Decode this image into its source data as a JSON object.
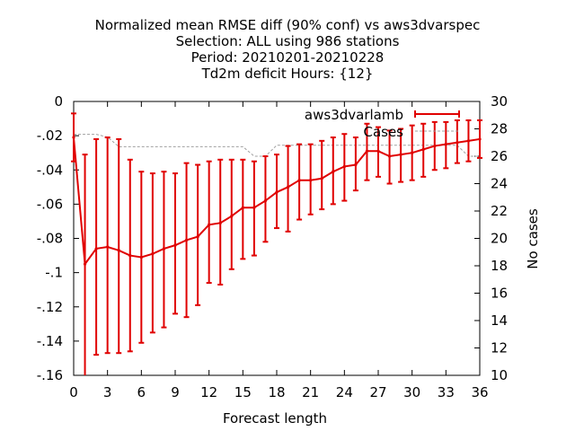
{
  "chart_data": {
    "type": "line",
    "title_lines": [
      "Normalized mean RMSE diff (90% conf) vs aws3dvarspec",
      "Selection: ALL using   986 stations",
      "Period: 20210201-20210228",
      "Td2m deficit   Hours: {12}"
    ],
    "xlabel": "Forecast length",
    "ylabel": "",
    "y2label": "No cases",
    "xlim": [
      0,
      36
    ],
    "ylim": [
      -0.16,
      0
    ],
    "y2lim": [
      10,
      30
    ],
    "xticks": [
      0,
      3,
      6,
      9,
      12,
      15,
      18,
      21,
      24,
      27,
      30,
      33,
      36
    ],
    "yticks": [
      0,
      -0.02,
      -0.04,
      -0.06,
      -0.08,
      -0.1,
      -0.12,
      -0.14,
      -0.16
    ],
    "y2ticks": [
      10,
      12,
      14,
      16,
      18,
      20,
      22,
      24,
      26,
      28,
      30
    ],
    "legend_position": "top-right",
    "series": [
      {
        "name": "aws3dvarlamb",
        "color": "#e00000",
        "x": [
          0,
          1,
          2,
          3,
          4,
          5,
          6,
          7,
          8,
          9,
          10,
          11,
          12,
          13,
          14,
          15,
          16,
          17,
          18,
          19,
          20,
          21,
          22,
          23,
          24,
          25,
          26,
          27,
          28,
          29,
          30,
          31,
          32,
          33,
          34,
          35,
          36
        ],
        "y": [
          -0.021,
          -0.095,
          -0.086,
          -0.085,
          -0.087,
          -0.09,
          -0.091,
          -0.089,
          -0.086,
          -0.084,
          -0.081,
          -0.079,
          -0.072,
          -0.071,
          -0.067,
          -0.062,
          -0.062,
          -0.058,
          -0.053,
          -0.05,
          -0.046,
          -0.046,
          -0.045,
          -0.041,
          -0.038,
          -0.037,
          -0.029,
          -0.029,
          -0.032,
          -0.031,
          -0.03,
          -0.028,
          -0.026,
          -0.025,
          -0.024,
          -0.023,
          -0.022
        ],
        "ci_low": [
          -0.035,
          -0.161,
          -0.148,
          -0.147,
          -0.147,
          -0.146,
          -0.141,
          -0.135,
          -0.132,
          -0.124,
          -0.126,
          -0.119,
          -0.106,
          -0.107,
          -0.098,
          -0.092,
          -0.09,
          -0.082,
          -0.074,
          -0.076,
          -0.069,
          -0.066,
          -0.063,
          -0.06,
          -0.058,
          -0.052,
          -0.046,
          -0.044,
          -0.048,
          -0.047,
          -0.046,
          -0.044,
          -0.04,
          -0.039,
          -0.036,
          -0.035,
          -0.033
        ],
        "ci_high": [
          -0.007,
          -0.031,
          -0.022,
          -0.021,
          -0.022,
          -0.034,
          -0.041,
          -0.042,
          -0.041,
          -0.042,
          -0.036,
          -0.037,
          -0.035,
          -0.034,
          -0.034,
          -0.034,
          -0.035,
          -0.032,
          -0.031,
          -0.026,
          -0.025,
          -0.025,
          -0.023,
          -0.021,
          -0.019,
          -0.021,
          -0.013,
          -0.015,
          -0.017,
          -0.016,
          -0.014,
          -0.013,
          -0.012,
          -0.012,
          -0.011,
          -0.011,
          -0.011
        ]
      },
      {
        "name": "Cases",
        "axis": "y2",
        "color": "#a0a0a0",
        "x": [
          0,
          1,
          2,
          3,
          4,
          5,
          6,
          7,
          8,
          9,
          10,
          11,
          12,
          13,
          14,
          15,
          16,
          17,
          18,
          19,
          20,
          21,
          22,
          23,
          24,
          25,
          26,
          27,
          28,
          29,
          30,
          31,
          32,
          33,
          34,
          35,
          36
        ],
        "y": [
          27.6,
          27.6,
          27.6,
          27.4,
          26.7,
          26.7,
          26.7,
          26.7,
          26.7,
          26.7,
          26.7,
          26.7,
          26.7,
          26.7,
          26.7,
          26.7,
          26.0,
          26.0,
          26.8,
          26.8,
          26.8,
          26.8,
          26.8,
          26.8,
          26.8,
          26.8,
          26.8,
          26.8,
          26.8,
          26.8,
          26.8,
          26.8,
          26.8,
          26.8,
          26.8,
          26.0,
          26.0
        ]
      }
    ]
  }
}
